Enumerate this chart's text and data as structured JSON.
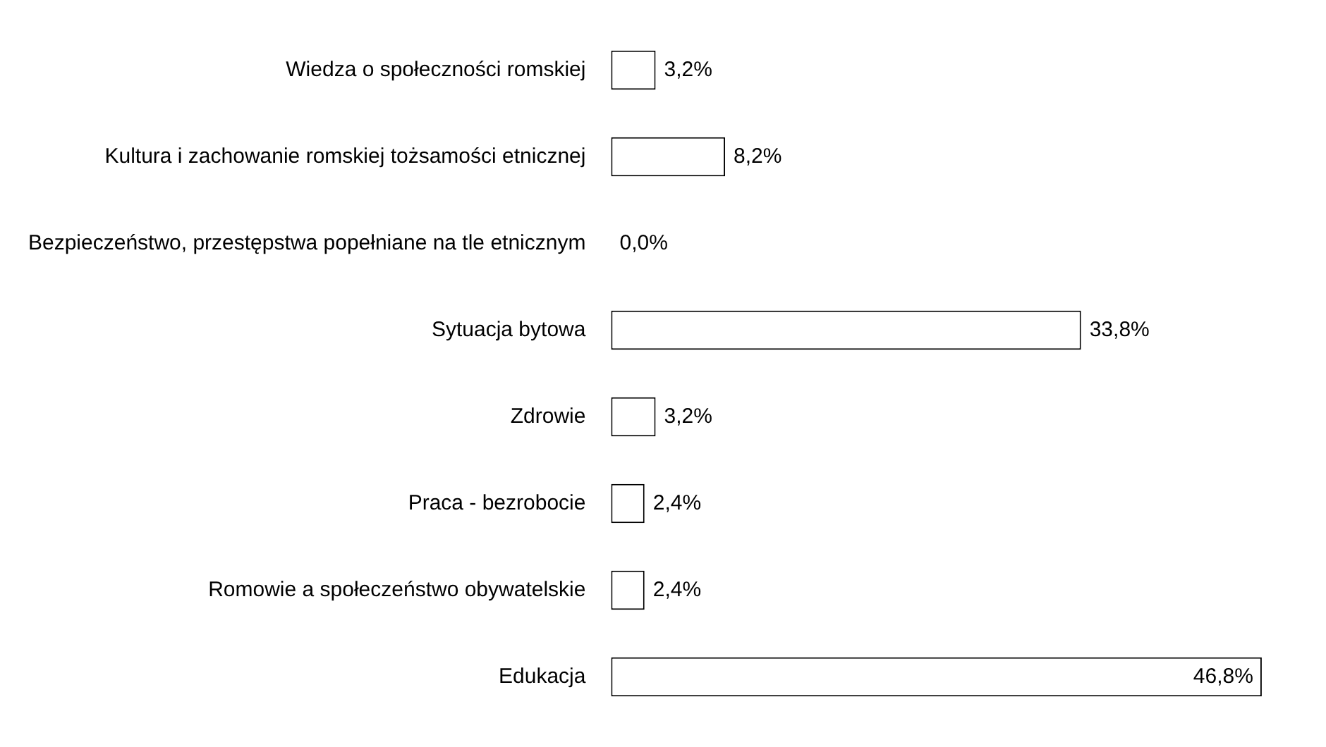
{
  "chart_data": {
    "type": "bar",
    "orientation": "horizontal",
    "categories": [
      "Wiedza o społeczności romskiej",
      "Kultura i zachowanie romskiej tożsamości etnicznej",
      "Bezpieczeństwo, przestępstwa popełniane na tle etnicznym",
      "Sytuacja bytowa",
      "Zdrowie",
      "Praca - bezrobocie",
      "Romowie a społeczeństwo obywatelskie",
      "Edukacja"
    ],
    "values": [
      3.2,
      8.2,
      0.0,
      33.8,
      3.2,
      2.4,
      2.4,
      46.8
    ],
    "value_labels": [
      "3,2%",
      "8,2%",
      "0,0%",
      "33,8%",
      "3,2%",
      "2,4%",
      "2,4%",
      "46,8%"
    ],
    "color": "#ffffff",
    "grid": false,
    "legend": false
  }
}
